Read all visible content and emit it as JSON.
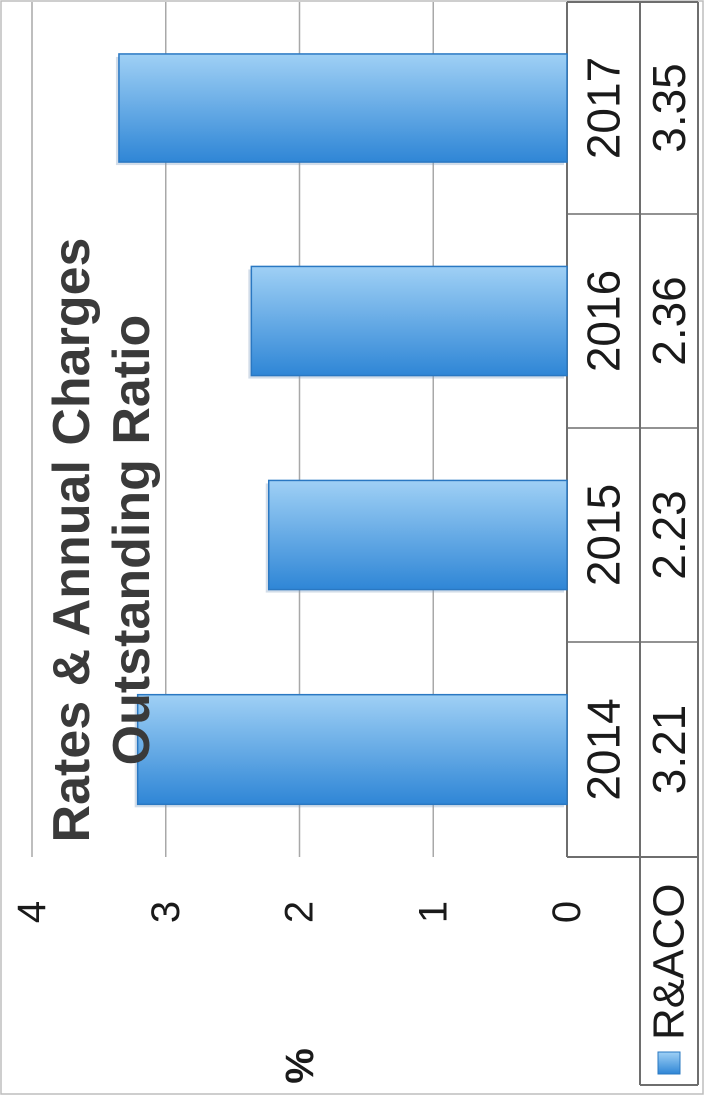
{
  "chart_data": {
    "type": "bar",
    "orientation": "rotated-90-clockwise",
    "title": [
      "Rates & Annual Charges",
      "Outstanding Ratio"
    ],
    "ylabel": "%",
    "ylim": [
      0,
      4
    ],
    "yticks": [
      "0",
      "1",
      "2",
      "3",
      "4"
    ],
    "grid": true,
    "categories": [
      "2014",
      "2015",
      "2016",
      "2017"
    ],
    "series": [
      {
        "name": "R&ACO",
        "values": [
          3.21,
          2.23,
          2.36,
          3.35
        ],
        "value_labels": [
          "3.21",
          "2.23",
          "2.36",
          "3.35"
        ]
      }
    ],
    "legend": "data-table",
    "colors": {
      "bar_dark": "#2f86d6",
      "bar_light": "#9fd0f5",
      "grid": "#a8a8a8",
      "axis": "#6e6e6e",
      "text": "#1a1a1a",
      "title": "#3a3a3a"
    }
  }
}
